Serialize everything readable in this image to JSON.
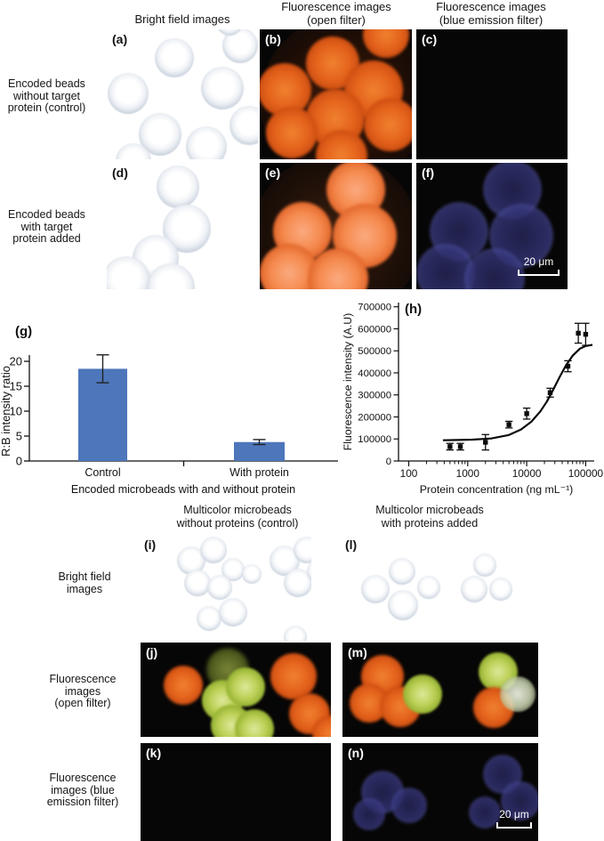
{
  "figure": {
    "top": {
      "col_headers": [
        {
          "text": "Bright field images"
        },
        {
          "text": "Fluorescence images\n(open filter)"
        },
        {
          "text": "Fluorescence images\n(blue emission filter)"
        }
      ],
      "row_labels": [
        {
          "text": "Encoded beads\nwithout target\nprotein (control)"
        },
        {
          "text": "Encoded beads\nwith target\nprotein added"
        }
      ]
    },
    "bottom": {
      "col_headers": [
        {
          "text": "Multicolor microbeads\nwithout proteins (control)"
        },
        {
          "text": "Multicolor microbeads\nwith proteins added"
        }
      ],
      "row_labels": [
        {
          "text": "Bright field\nimages"
        },
        {
          "text": "Fluorescence\nimages\n(open filter)"
        },
        {
          "text": "Fluorescence\nimages (blue\nemission filter)"
        }
      ]
    },
    "panel_labels": {
      "a": "(a)",
      "b": "(b)",
      "c": "(c)",
      "d": "(d)",
      "e": "(e)",
      "f": "(f)",
      "g": "(g)",
      "h": "(h)",
      "i": "(i)",
      "j": "(j)",
      "k": "(k)",
      "l": "(l)",
      "m": "(m)",
      "n": "(n)"
    },
    "scale_bars": {
      "f": "20 μm",
      "n": "20 μm"
    }
  },
  "colors": {
    "bar_blue": "#4d76bb",
    "bead_orange": "#e4631c",
    "bead_salmon": "#f58a4e",
    "bead_green": "#a8c43e",
    "bead_blue": "#34346e",
    "bright_field_rim": "#8494aa",
    "panel_black": "#070606"
  },
  "chart_data": [
    {
      "id": "g",
      "type": "bar",
      "panel_label": "(g)",
      "categories": [
        "Control",
        "With protein"
      ],
      "values": [
        18.5,
        3.8
      ],
      "errors": [
        2.8,
        0.5
      ],
      "ylabel": "R:B intensity ratio",
      "xlabel": "Encoded microbeads with and without protein",
      "ylim": [
        0,
        20
      ],
      "yticks": [
        0,
        5,
        10,
        15,
        20
      ],
      "bar_color": "#4d76bb",
      "grid": false
    },
    {
      "id": "h",
      "type": "scatter",
      "panel_label": "(h)",
      "x": [
        500,
        750,
        2000,
        5000,
        10000,
        25000,
        50000,
        75000,
        100000
      ],
      "y": [
        65000,
        65000,
        85000,
        165000,
        215000,
        310000,
        430000,
        580000,
        575000
      ],
      "yerr": [
        15000,
        15000,
        35000,
        15000,
        25000,
        20000,
        25000,
        45000,
        50000
      ],
      "fit_curve": [
        [
          380,
          94000
        ],
        [
          700,
          95500
        ],
        [
          1200,
          97000
        ],
        [
          2500,
          102000
        ],
        [
          5000,
          118000
        ],
        [
          8000,
          143000
        ],
        [
          12000,
          178000
        ],
        [
          17000,
          225000
        ],
        [
          22000,
          270000
        ],
        [
          28000,
          322000
        ],
        [
          36000,
          380000
        ],
        [
          46000,
          432000
        ],
        [
          60000,
          478000
        ],
        [
          80000,
          510000
        ],
        [
          100000,
          522000
        ],
        [
          130000,
          527000
        ]
      ],
      "xlabel": "Protein concentration (ng mL⁻¹)",
      "ylabel": "Fluorescence intensity (A.U)",
      "xscale": "log",
      "xticks": [
        100,
        1000,
        10000,
        100000
      ],
      "ylim": [
        0,
        700000
      ],
      "yticks": [
        0,
        100000,
        200000,
        300000,
        400000,
        500000,
        600000,
        700000
      ],
      "grid": false
    }
  ]
}
